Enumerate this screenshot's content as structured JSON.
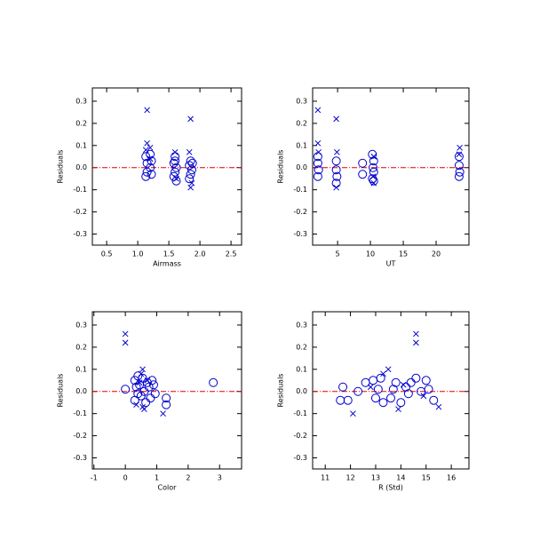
{
  "chart_data": [
    {
      "type": "scatter",
      "x_label": "Airmass",
      "y_label": "Residuals",
      "xlim": [
        0.27,
        2.67
      ],
      "ylim": [
        -0.35,
        0.36
      ],
      "xticks": [
        0.5,
        {
          "value": 1,
          "label": "1.0"
        },
        1.5,
        {
          "value": 2,
          "label": "2.0"
        },
        2.5
      ],
      "yticks": [
        0.3,
        0.2,
        0.1,
        {
          "value": 0,
          "label": "0.0"
        },
        -0.1,
        -0.2,
        -0.3
      ],
      "reference_line": 0,
      "reference_color": "#dd0000",
      "series": [
        {
          "marker": "circle",
          "color": "#0000cc",
          "x": [
            1.13,
            1.15,
            1.15,
            1.13,
            1.2,
            1.22,
            1.2,
            1.22,
            1.6,
            1.58,
            1.62,
            1.6,
            1.58,
            1.62,
            1.6,
            1.85,
            1.83,
            1.87,
            1.85,
            1.88,
            1.83
          ],
          "values": [
            0.05,
            0.02,
            -0.02,
            -0.04,
            0.06,
            0.03,
            0.0,
            -0.03,
            0.05,
            0.02,
            0.0,
            -0.02,
            -0.04,
            -0.06,
            0.03,
            0.03,
            0.01,
            -0.01,
            -0.03,
            0.02,
            -0.05
          ]
        },
        {
          "marker": "cross",
          "color": "#0000cc",
          "x": [
            1.15,
            1.15,
            1.13,
            1.2,
            1.6,
            1.62,
            1.85,
            1.83,
            1.85,
            1.87,
            1.2
          ],
          "values": [
            0.26,
            0.11,
            0.08,
            0.04,
            0.07,
            -0.05,
            0.22,
            0.07,
            -0.09,
            -0.07,
            0.09
          ]
        }
      ]
    },
    {
      "type": "scatter",
      "x_label": "UT",
      "y_label": "Residuals",
      "xlim": [
        1.2,
        25
      ],
      "ylim": [
        -0.35,
        0.36
      ],
      "xticks": [
        5,
        10,
        15,
        20
      ],
      "yticks": [
        0.3,
        0.2,
        0.1,
        {
          "value": 0,
          "label": "0.0"
        },
        -0.1,
        -0.2,
        -0.3
      ],
      "reference_line": 0,
      "reference_color": "#dd0000",
      "series": [
        {
          "marker": "circle",
          "color": "#0000cc",
          "x": [
            2,
            2,
            2.1,
            2,
            4.8,
            4.8,
            4.9,
            4.8,
            8.8,
            8.8,
            10.3,
            10.5,
            10.4,
            10.5,
            10.3,
            10.5,
            23.5,
            23.5,
            23.6,
            23.5
          ],
          "values": [
            0.05,
            0.02,
            -0.01,
            -0.04,
            0.03,
            -0.01,
            -0.04,
            -0.07,
            0.02,
            -0.03,
            0.06,
            0.03,
            0.0,
            -0.02,
            -0.05,
            -0.06,
            0.05,
            0.01,
            -0.02,
            -0.04
          ]
        },
        {
          "marker": "cross",
          "color": "#0000cc",
          "x": [
            2,
            2,
            2.1,
            4.8,
            4.9,
            4.8,
            10.5,
            10.4,
            23.6,
            23.5,
            10.5
          ],
          "values": [
            0.26,
            0.11,
            0.07,
            0.22,
            0.07,
            -0.09,
            0.05,
            -0.04,
            0.09,
            0.06,
            -0.07
          ]
        }
      ]
    },
    {
      "type": "scatter",
      "x_label": "Color",
      "y_label": "Residuals",
      "xlim": [
        -1.05,
        3.7
      ],
      "ylim": [
        -0.35,
        0.36
      ],
      "xticks": [
        -1,
        0,
        1,
        2,
        3
      ],
      "yticks": [
        0.3,
        0.2,
        0.1,
        {
          "value": 0,
          "label": "0.0"
        },
        -0.1,
        -0.2,
        -0.3
      ],
      "reference_line": 0,
      "reference_color": "#dd0000",
      "series": [
        {
          "marker": "circle",
          "color": "#0000cc",
          "x": [
            0,
            0.3,
            0.35,
            0.4,
            0.3,
            0.45,
            0.5,
            0.55,
            0.6,
            0.65,
            0.7,
            0.75,
            0.85,
            0.9,
            0.95,
            0.8,
            1.3,
            1.3,
            2.8,
            0.4
          ],
          "values": [
            0.01,
            0.05,
            0.02,
            -0.01,
            -0.04,
            0.03,
            -0.02,
            0.06,
            0.0,
            -0.05,
            0.04,
            0.02,
            0.05,
            0.03,
            -0.01,
            -0.03,
            -0.03,
            -0.06,
            0.04,
            0.07
          ]
        },
        {
          "marker": "cross",
          "color": "#0000cc",
          "x": [
            0,
            0,
            0.55,
            0.5,
            0.35,
            0.6,
            1.2,
            0.7,
            0.45,
            0.55
          ],
          "values": [
            0.26,
            0.22,
            0.1,
            0.08,
            -0.06,
            -0.08,
            -0.1,
            0.05,
            0.04,
            -0.07
          ]
        }
      ]
    },
    {
      "type": "scatter",
      "x_label": "R (Std)",
      "y_label": "Residuals",
      "xlim": [
        10.5,
        16.7
      ],
      "ylim": [
        -0.35,
        0.36
      ],
      "xticks": [
        11,
        12,
        13,
        14,
        15,
        16
      ],
      "yticks": [
        0.3,
        0.2,
        0.1,
        {
          "value": 0,
          "label": "0.0"
        },
        -0.1,
        -0.2,
        -0.3
      ],
      "reference_line": 0,
      "reference_color": "#dd0000",
      "series": [
        {
          "marker": "circle",
          "color": "#0000cc",
          "x": [
            11.7,
            11.6,
            11.9,
            12.3,
            12.6,
            12.9,
            13.0,
            13.1,
            13.2,
            13.3,
            13.6,
            13.7,
            13.8,
            14.0,
            14.2,
            14.4,
            14.6,
            14.8,
            15.0,
            15.1,
            15.3,
            14.3
          ],
          "values": [
            0.02,
            -0.04,
            -0.04,
            0.0,
            0.04,
            0.05,
            -0.03,
            0.01,
            0.06,
            -0.05,
            -0.03,
            0.01,
            0.04,
            -0.05,
            0.02,
            0.04,
            0.06,
            0.0,
            0.05,
            0.01,
            -0.04,
            -0.01
          ]
        },
        {
          "marker": "cross",
          "color": "#0000cc",
          "x": [
            14.6,
            14.6,
            13.5,
            12.1,
            13.9,
            15.5,
            14.1,
            12.8,
            14.9,
            13.3
          ],
          "values": [
            0.26,
            0.22,
            0.1,
            -0.1,
            -0.08,
            -0.07,
            0.03,
            0.02,
            -0.02,
            0.08
          ]
        }
      ]
    }
  ]
}
